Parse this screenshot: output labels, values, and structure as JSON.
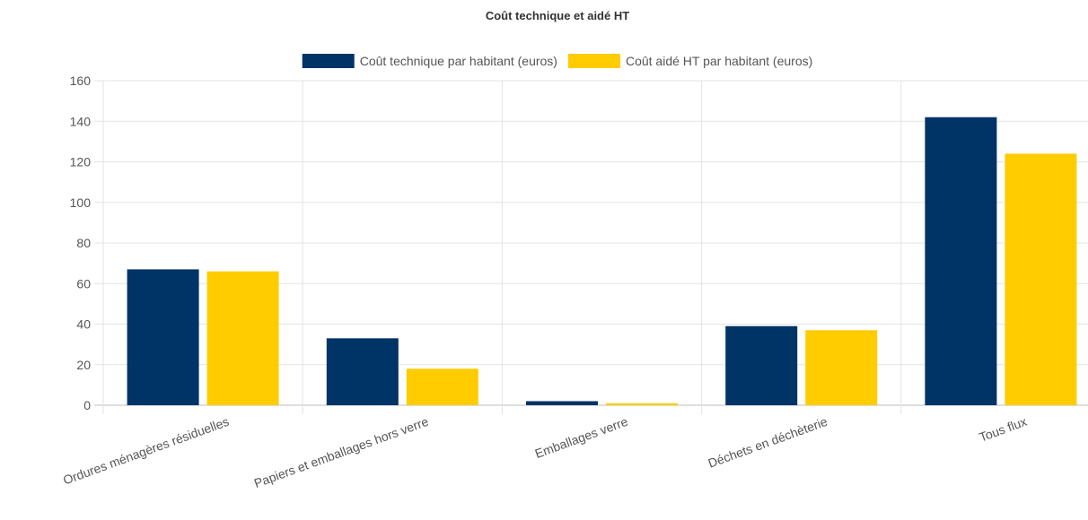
{
  "chart_data": {
    "type": "bar",
    "title": "Coût technique et aidé HT",
    "categories": [
      "Ordures ménagères résiduelles",
      "Papiers et emballages hors verre",
      "Emballages verre",
      "Déchets en déchèterie",
      "Tous flux"
    ],
    "series": [
      {
        "name": "Coût technique par habitant (euros)",
        "values": [
          67,
          33,
          2,
          39,
          142
        ],
        "color": "#003366"
      },
      {
        "name": "Coût aidé HT par habitant (euros)",
        "values": [
          66,
          18,
          1,
          37,
          124
        ],
        "color": "#ffcc00"
      }
    ],
    "ylim": [
      0,
      160
    ],
    "yticks": [
      0,
      20,
      40,
      60,
      80,
      100,
      120,
      140,
      160
    ],
    "xlabel": "",
    "ylabel": "",
    "grid": true,
    "legend_position": "top"
  }
}
